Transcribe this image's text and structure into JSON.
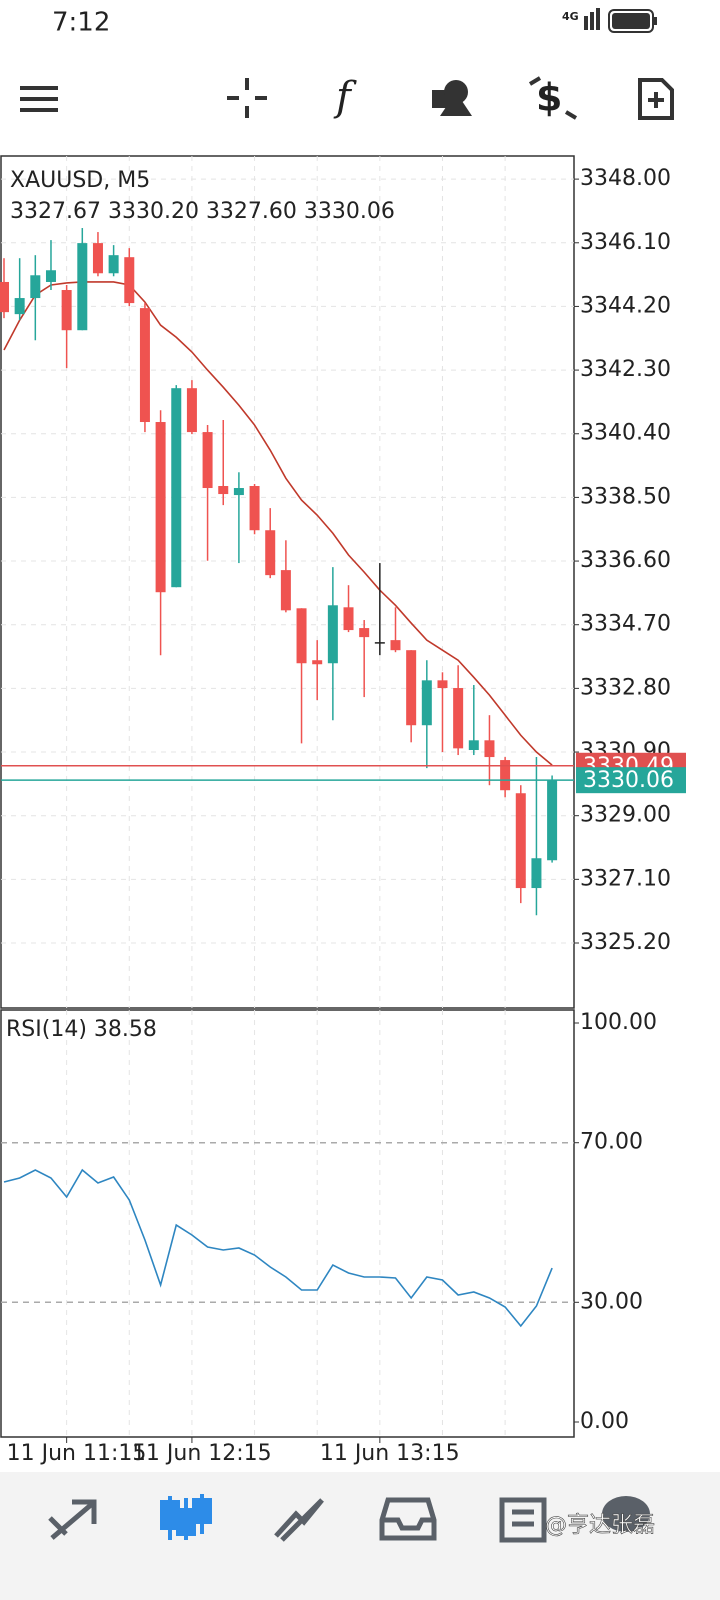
{
  "status_bar": {
    "time": "7:12",
    "network": "4G"
  },
  "chart_data": [
    {
      "type": "candlestick",
      "title": "XAUUSD, M5",
      "subtitle": "3327.67 3330.20 3327.60 3330.06",
      "categories": [
        null,
        null,
        null,
        null,
        "11 Jun 11:15",
        null,
        null,
        null,
        null,
        null,
        null,
        null,
        "11 Jun 12:15",
        null,
        null,
        null,
        null,
        null,
        null,
        null,
        null,
        null,
        null,
        null,
        "11 Jun 13:15",
        null,
        null,
        null,
        null,
        null,
        null,
        null,
        null,
        null,
        null,
        null
      ],
      "open": [
        3344.93,
        3343.97,
        3344.45,
        3344.93,
        3344.69,
        3343.49,
        3346.09,
        3345.19,
        3345.67,
        3344.15,
        3340.75,
        3335.82,
        3341.76,
        3340.45,
        3338.84,
        3338.57,
        3338.84,
        3337.52,
        3336.33,
        3335.19,
        3333.64,
        3333.55,
        3335.22,
        3334.6,
        3334.18,
        3334.24,
        3333.94,
        3331.7,
        3333.04,
        3332.81,
        3330.96,
        3331.25,
        3330.66,
        3329.67,
        3326.84,
        3327.67
      ],
      "high": [
        3345.64,
        3345.64,
        3345.73,
        3346.18,
        3344.84,
        3346.54,
        3346.42,
        3346.03,
        3345.94,
        3344.3,
        3341.1,
        3341.85,
        3342.0,
        3340.66,
        3340.81,
        3339.25,
        3338.9,
        3338.18,
        3337.22,
        3335.19,
        3334.24,
        3336.42,
        3335.88,
        3334.84,
        3336.54,
        3335.22,
        3333.94,
        3333.64,
        3333.28,
        3333.49,
        3332.9,
        3332.0,
        3330.75,
        3329.91,
        3330.75,
        3330.2
      ],
      "low": [
        3343.85,
        3343.79,
        3343.19,
        3344.69,
        3342.36,
        3343.49,
        3345.1,
        3345.1,
        3344.21,
        3340.45,
        3333.79,
        3335.82,
        3340.39,
        3336.61,
        3338.27,
        3336.54,
        3337.4,
        3336.09,
        3335.07,
        3331.16,
        3332.45,
        3331.85,
        3334.48,
        3332.54,
        3333.79,
        3333.88,
        3331.19,
        3330.42,
        3330.9,
        3330.81,
        3330.81,
        3329.91,
        3329.55,
        3326.39,
        3326.03,
        3327.6
      ],
      "close": [
        3344.03,
        3344.45,
        3345.13,
        3345.28,
        3343.49,
        3346.09,
        3345.19,
        3345.73,
        3344.3,
        3340.75,
        3335.67,
        3341.76,
        3340.45,
        3338.78,
        3338.6,
        3338.78,
        3337.52,
        3336.18,
        3335.13,
        3333.55,
        3333.52,
        3335.28,
        3334.54,
        3334.33,
        3334.18,
        3333.94,
        3331.7,
        3333.04,
        3332.81,
        3331.01,
        3331.25,
        3330.75,
        3329.76,
        3326.84,
        3327.73,
        3330.06
      ],
      "up_color": "#26a69a",
      "down_color": "#ef5350",
      "doji_color": "#222222",
      "overlay": {
        "color": "#c0392b",
        "values": [
          3342.9,
          3343.79,
          3344.54,
          3344.84,
          3344.9,
          3344.93,
          3344.93,
          3344.93,
          3344.84,
          3344.33,
          3343.64,
          3343.28,
          3342.84,
          3342.3,
          3341.79,
          3341.25,
          3340.66,
          3339.91,
          3339.07,
          3338.42,
          3337.97,
          3337.43,
          3336.78,
          3336.27,
          3335.73,
          3335.28,
          3334.75,
          3334.24,
          3333.94,
          3333.64,
          3333.13,
          3332.6,
          3332.0,
          3331.4,
          3330.9,
          3330.51
        ]
      },
      "price_lines": [
        {
          "value": 3330.49,
          "color": "#e05050"
        },
        {
          "value": 3330.06,
          "color": "#26a69a"
        }
      ],
      "ylim": [
        3323.26,
        3348.69
      ],
      "yticks": [
        {
          "value": 3348,
          "label": "3348.00"
        },
        {
          "value": 3346.1,
          "label": "3346.10"
        },
        {
          "value": 3344.2,
          "label": "3344.20"
        },
        {
          "value": 3342.3,
          "label": "3342.30"
        },
        {
          "value": 3340.4,
          "label": "3340.40"
        },
        {
          "value": 3338.5,
          "label": "3338.50"
        },
        {
          "value": 3336.6,
          "label": "3336.60"
        },
        {
          "value": 3334.7,
          "label": "3334.70"
        },
        {
          "value": 3332.8,
          "label": "3332.80"
        },
        {
          "value": 3330.9,
          "label": "3330.90"
        },
        {
          "value": 3329,
          "label": "3329.00"
        },
        {
          "value": 3327.1,
          "label": "3327.10"
        },
        {
          "value": 3325.2,
          "label": "3325.20"
        }
      ],
      "grid": true
    },
    {
      "type": "line",
      "title": "RSI(14) 38.58",
      "series": [
        {
          "color": "#2e86c1",
          "values": [
            60.15,
            61.15,
            63.16,
            61.15,
            56.39,
            63.16,
            59.9,
            61.4,
            55.64,
            45.61,
            34.34,
            49.37,
            46.87,
            43.86,
            43.11,
            43.61,
            41.85,
            38.85,
            36.34,
            33.08,
            33.08,
            39.35,
            37.34,
            36.34,
            36.34,
            36.09,
            31.08,
            36.34,
            35.59,
            31.83,
            32.58,
            31.08,
            28.82,
            24.06,
            29.07,
            38.58
          ]
        }
      ],
      "levels": [
        70,
        30
      ],
      "ylim": [
        -3.76,
        103.26
      ],
      "yticks": [
        {
          "value": 0,
          "label": "0.00"
        },
        {
          "value": 30,
          "label": "30.00"
        },
        {
          "value": 70,
          "label": "70.00"
        },
        {
          "value": 100,
          "label": "100.00"
        }
      ],
      "grid": true
    }
  ],
  "watermark": "@亨达张磊"
}
